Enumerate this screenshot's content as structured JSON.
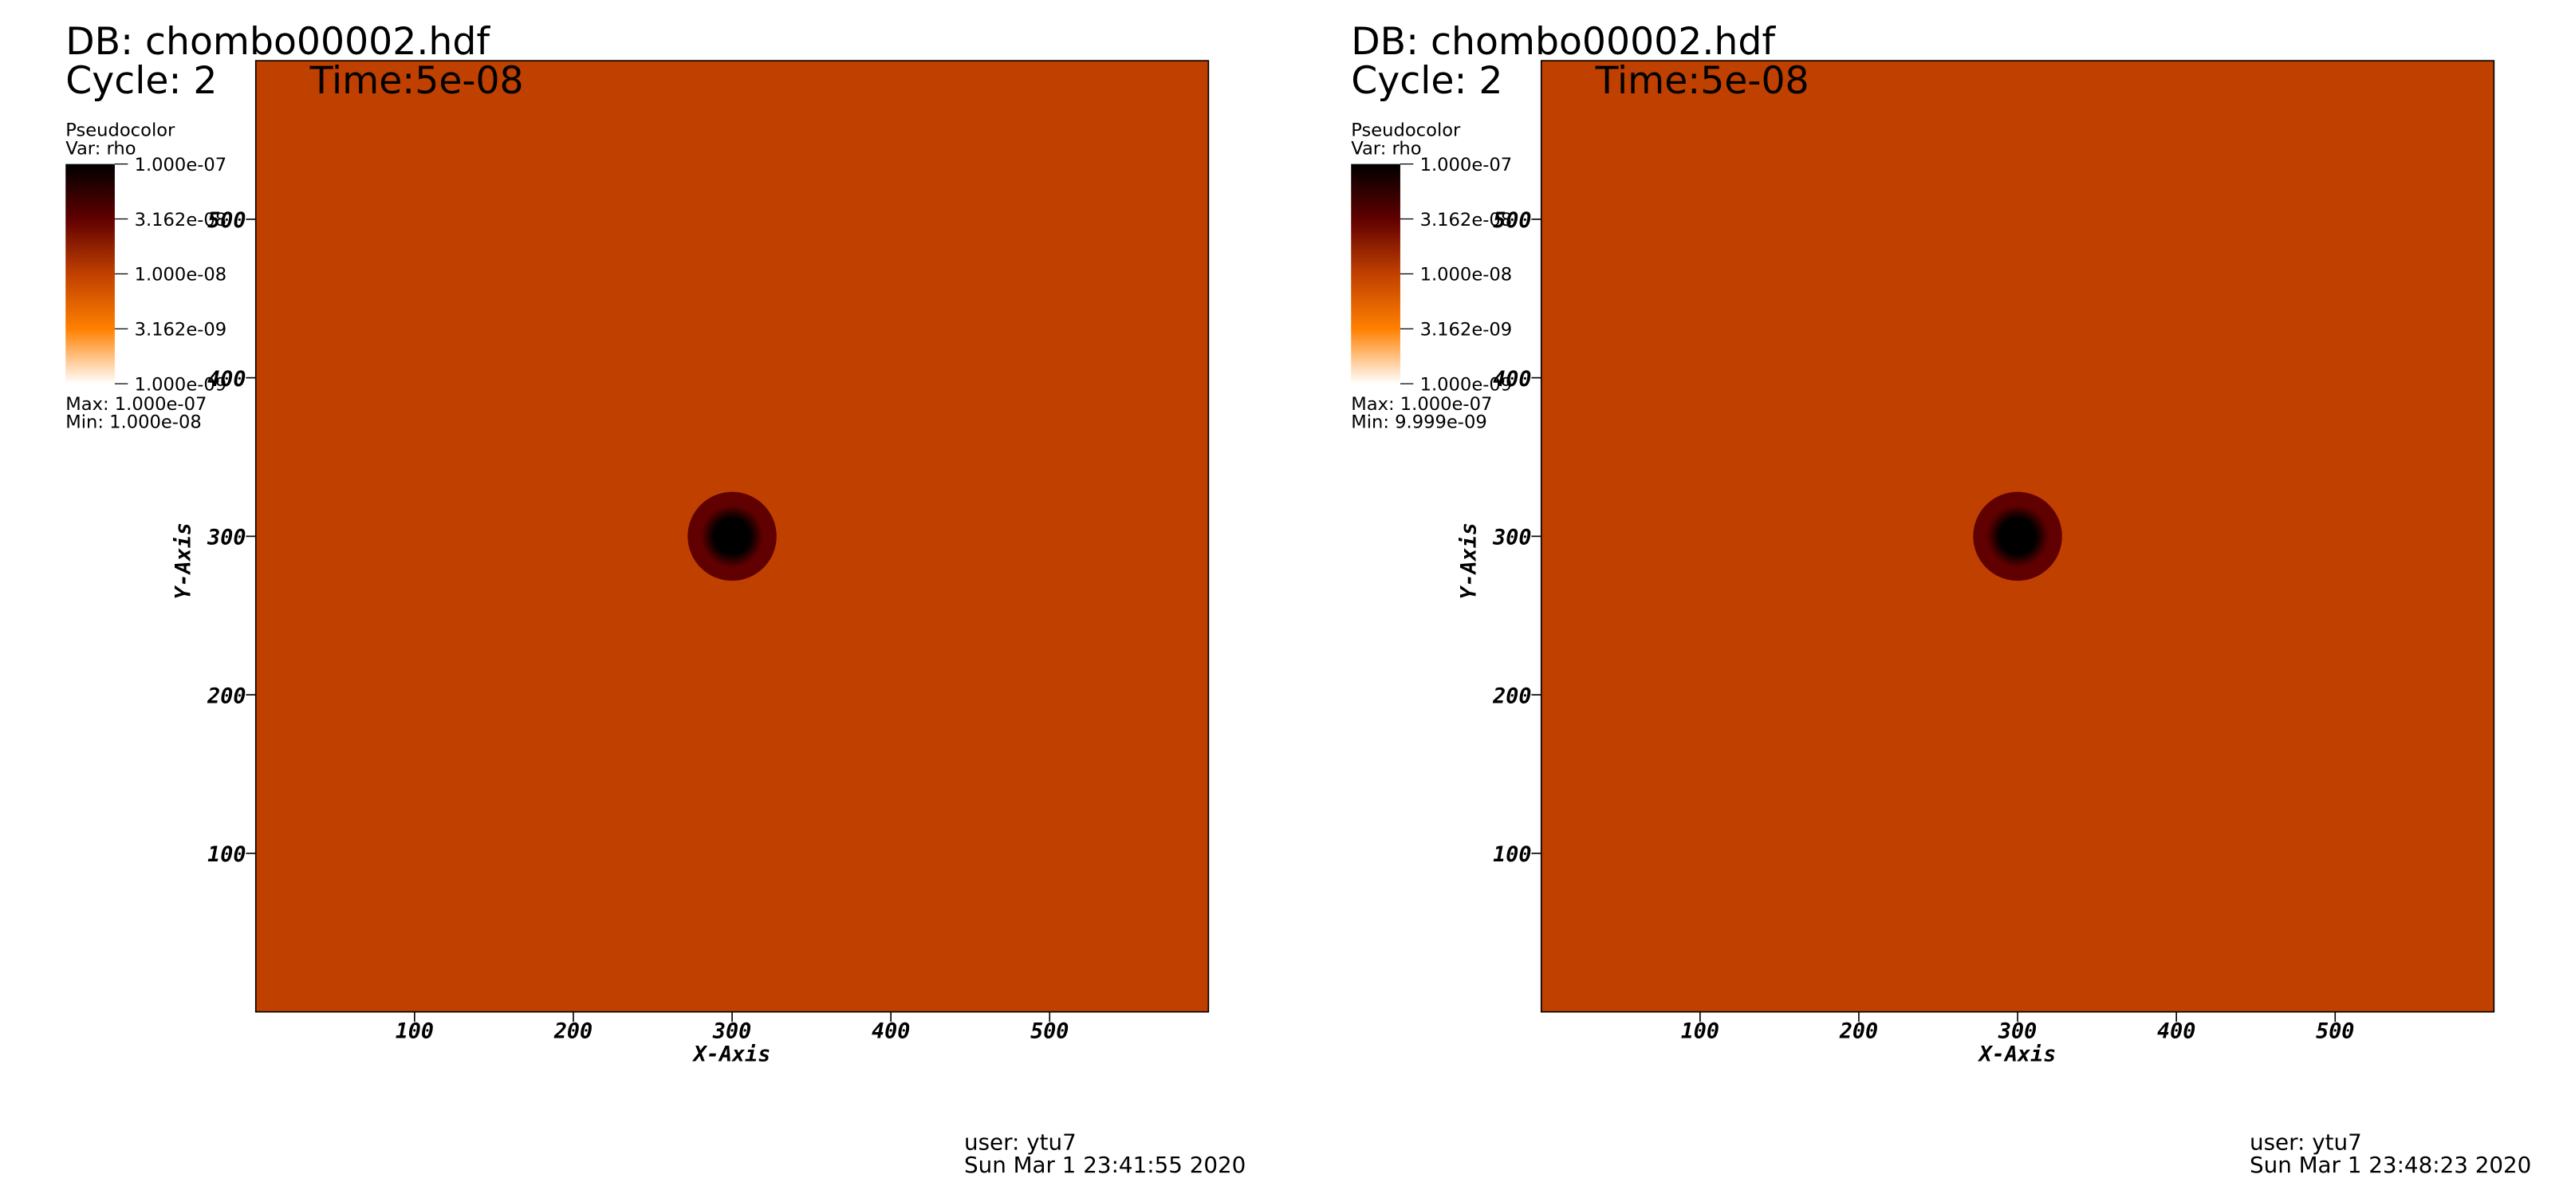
{
  "chart_data": [
    {
      "type": "pseudocolor",
      "db": "DB: chombo00002.hdf",
      "cycle": "Cycle: 2",
      "time": "Time:5e-08",
      "legend_title": "Pseudocolor",
      "variable": "Var: rho",
      "colorbar_scale": "log",
      "colorbar_ticks": [
        {
          "value": 1e-07,
          "label": "1.000e-07"
        },
        {
          "value": 3.162e-08,
          "label": "3.162e-08"
        },
        {
          "value": 1e-08,
          "label": "1.000e-08"
        },
        {
          "value": 3.162e-09,
          "label": "3.162e-09"
        },
        {
          "value": 1e-09,
          "label": "1.000e-09"
        }
      ],
      "colormap": [
        "#ffffff",
        "#ff8000",
        "#c04000",
        "#600000",
        "#000000"
      ],
      "max_label": "Max:  1.000e-07",
      "min_label": "Min:  1.000e-08",
      "xlabel": "X-Axis",
      "ylabel": "Y-Axis",
      "xlim": [
        0,
        600
      ],
      "ylim": [
        0,
        600
      ],
      "xticks": [
        100,
        200,
        300,
        400,
        500
      ],
      "yticks": [
        100,
        200,
        300,
        400,
        500
      ],
      "background_color": "#c04000",
      "feature": {
        "x": 300,
        "y": 300,
        "radius": 28
      },
      "user": "user: ytu7",
      "date": "Sun Mar  1 23:41:55 2020"
    },
    {
      "type": "pseudocolor",
      "db": "DB: chombo00002.hdf",
      "cycle": "Cycle: 2",
      "time": "Time:5e-08",
      "legend_title": "Pseudocolor",
      "variable": "Var: rho",
      "colorbar_scale": "log",
      "colorbar_ticks": [
        {
          "value": 1e-07,
          "label": "1.000e-07"
        },
        {
          "value": 3.162e-08,
          "label": "3.162e-08"
        },
        {
          "value": 1e-08,
          "label": "1.000e-08"
        },
        {
          "value": 3.162e-09,
          "label": "3.162e-09"
        },
        {
          "value": 1e-09,
          "label": "1.000e-09"
        }
      ],
      "colormap": [
        "#ffffff",
        "#ff8000",
        "#c04000",
        "#600000",
        "#000000"
      ],
      "max_label": "Max:  1.000e-07",
      "min_label": "Min:  9.999e-09",
      "xlabel": "X-Axis",
      "ylabel": "Y-Axis",
      "xlim": [
        0,
        600
      ],
      "ylim": [
        0,
        600
      ],
      "xticks": [
        100,
        200,
        300,
        400,
        500
      ],
      "yticks": [
        100,
        200,
        300,
        400,
        500
      ],
      "background_color": "#c04000",
      "feature": {
        "x": 300,
        "y": 300,
        "radius": 28
      },
      "user": "user: ytu7",
      "date": "Sun Mar  1 23:48:23 2020"
    }
  ]
}
